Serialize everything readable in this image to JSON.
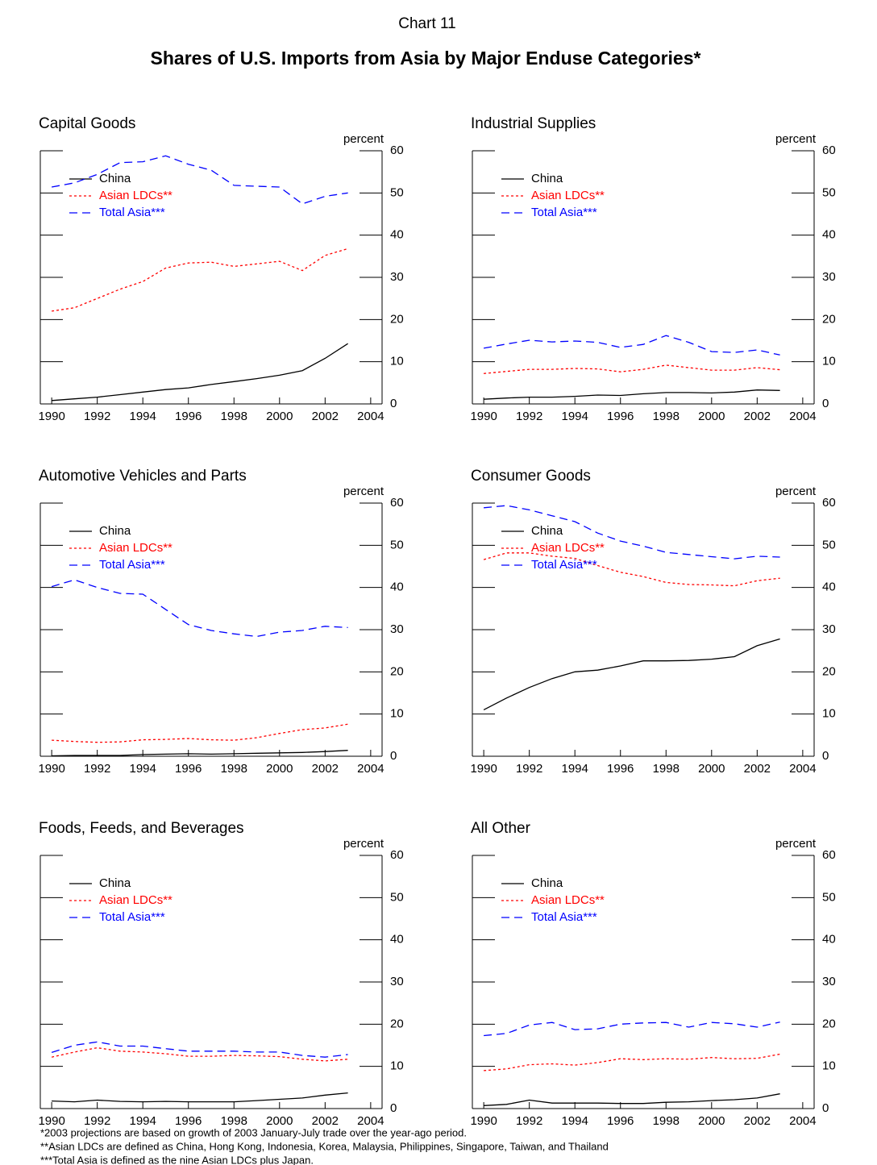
{
  "chart_number": "Chart 11",
  "title": "Shares of U.S. Imports from Asia by Major Enduse Categories*",
  "footnotes": [
    "*2003 projections are based on growth of 2003 January-July trade over the year-ago period.",
    "**Asian LDCs are defined as China, Hong Kong, Indonesia, Korea, Malaysia, Philippines, Singapore, Taiwan, and Thailand",
    "***Total Asia is defined as the nine Asian LDCs plus Japan."
  ],
  "chart_data": [
    {
      "type": "line",
      "title": "Capital Goods",
      "y_label": "percent",
      "legend": "upper left",
      "grid": false,
      "x": [
        1990,
        1991,
        1992,
        1993,
        1994,
        1995,
        1996,
        1997,
        1998,
        1999,
        2000,
        2001,
        2002,
        2003
      ],
      "xlim": [
        1989.5,
        2004.5
      ],
      "xticks": [
        1990,
        1992,
        1994,
        1996,
        1998,
        2000,
        2002,
        2004
      ],
      "ylim": [
        0,
        60
      ],
      "yticks": [
        0,
        10,
        20,
        30,
        40,
        50,
        60
      ],
      "series": [
        {
          "name": "China",
          "color": "#000000",
          "style": "solid",
          "values": [
            0.8,
            1.2,
            1.6,
            2.2,
            2.8,
            3.4,
            3.8,
            4.6,
            5.3,
            6.0,
            6.8,
            7.9,
            10.8,
            14.3
          ]
        },
        {
          "name": "Asian LDCs**",
          "color": "#ff0000",
          "style": "dotted",
          "values": [
            22,
            22.8,
            25,
            27.2,
            29,
            32.2,
            33.4,
            33.6,
            32.6,
            33.2,
            33.8,
            31.6,
            35.2,
            36.8
          ]
        },
        {
          "name": "Total Asia***",
          "color": "#0000ff",
          "style": "dashed",
          "values": [
            51.4,
            52.4,
            54.4,
            57.2,
            57.4,
            58.8,
            56.8,
            55.4,
            51.8,
            51.6,
            51.4,
            47.4,
            49.2,
            50.0
          ]
        }
      ]
    },
    {
      "type": "line",
      "title": "Industrial Supplies",
      "y_label": "percent",
      "legend": "upper left",
      "grid": false,
      "x": [
        1990,
        1991,
        1992,
        1993,
        1994,
        1995,
        1996,
        1997,
        1998,
        1999,
        2000,
        2001,
        2002,
        2003
      ],
      "xlim": [
        1989.5,
        2004.5
      ],
      "xticks": [
        1990,
        1992,
        1994,
        1996,
        1998,
        2000,
        2002,
        2004
      ],
      "ylim": [
        0,
        60
      ],
      "yticks": [
        0,
        10,
        20,
        30,
        40,
        50,
        60
      ],
      "series": [
        {
          "name": "China",
          "color": "#000000",
          "style": "solid",
          "values": [
            1.1,
            1.4,
            1.6,
            1.6,
            1.8,
            2.1,
            2.0,
            2.4,
            2.7,
            2.7,
            2.6,
            2.8,
            3.3,
            3.2
          ]
        },
        {
          "name": "Asian LDCs**",
          "color": "#ff0000",
          "style": "dotted",
          "values": [
            7.2,
            7.7,
            8.2,
            8.2,
            8.4,
            8.3,
            7.6,
            8.2,
            9.2,
            8.6,
            8.0,
            8.0,
            8.6,
            8.1
          ]
        },
        {
          "name": "Total Asia***",
          "color": "#0000ff",
          "style": "dashed",
          "values": [
            13.2,
            14.2,
            15.1,
            14.7,
            14.9,
            14.6,
            13.4,
            14.1,
            16.2,
            14.6,
            12.4,
            12.2,
            12.8,
            11.6
          ]
        }
      ]
    },
    {
      "type": "line",
      "title": "Automotive Vehicles and Parts",
      "y_label": "percent",
      "legend": "upper left",
      "grid": false,
      "x": [
        1990,
        1991,
        1992,
        1993,
        1994,
        1995,
        1996,
        1997,
        1998,
        1999,
        2000,
        2001,
        2002,
        2003
      ],
      "xlim": [
        1989.5,
        2004.5
      ],
      "xticks": [
        1990,
        1992,
        1994,
        1996,
        1998,
        2000,
        2002,
        2004
      ],
      "ylim": [
        0,
        60
      ],
      "yticks": [
        0,
        10,
        20,
        30,
        40,
        50,
        60
      ],
      "series": [
        {
          "name": "China",
          "color": "#000000",
          "style": "solid",
          "values": [
            0.1,
            0.2,
            0.2,
            0.2,
            0.4,
            0.5,
            0.6,
            0.5,
            0.6,
            0.7,
            0.8,
            0.9,
            1.1,
            1.4
          ]
        },
        {
          "name": "Asian LDCs**",
          "color": "#ff0000",
          "style": "dotted",
          "values": [
            3.8,
            3.5,
            3.3,
            3.4,
            3.9,
            4.0,
            4.2,
            3.9,
            3.8,
            4.4,
            5.4,
            6.3,
            6.7,
            7.6
          ]
        },
        {
          "name": "Total Asia***",
          "color": "#0000ff",
          "style": "dashed",
          "values": [
            40.2,
            41.8,
            40.0,
            38.6,
            38.4,
            34.8,
            31.2,
            29.8,
            29.0,
            28.4,
            29.4,
            29.8,
            30.8,
            30.5
          ]
        }
      ]
    },
    {
      "type": "line",
      "title": "Consumer Goods",
      "y_label": "percent",
      "legend": "upper left",
      "grid": false,
      "x": [
        1990,
        1991,
        1992,
        1993,
        1994,
        1995,
        1996,
        1997,
        1998,
        1999,
        2000,
        2001,
        2002,
        2003
      ],
      "xlim": [
        1989.5,
        2004.5
      ],
      "xticks": [
        1990,
        1992,
        1994,
        1996,
        1998,
        2000,
        2002,
        2004
      ],
      "ylim": [
        0,
        60
      ],
      "yticks": [
        0,
        10,
        20,
        30,
        40,
        50,
        60
      ],
      "series": [
        {
          "name": "China",
          "color": "#000000",
          "style": "solid",
          "values": [
            11.0,
            13.8,
            16.3,
            18.4,
            20.0,
            20.4,
            21.4,
            22.6,
            22.6,
            22.7,
            23.0,
            23.6,
            26.2,
            27.8
          ]
        },
        {
          "name": "Asian LDCs**",
          "color": "#ff0000",
          "style": "dotted",
          "values": [
            46.6,
            48.2,
            48.2,
            47.4,
            46.9,
            45.2,
            43.6,
            42.6,
            41.2,
            40.7,
            40.6,
            40.4,
            41.6,
            42.2
          ]
        },
        {
          "name": "Total Asia***",
          "color": "#0000ff",
          "style": "dashed",
          "values": [
            58.9,
            59.4,
            58.4,
            57.0,
            55.6,
            52.9,
            51.0,
            49.8,
            48.3,
            47.8,
            47.3,
            46.8,
            47.4,
            47.2
          ]
        }
      ]
    },
    {
      "type": "line",
      "title": "Foods, Feeds, and Beverages",
      "y_label": "percent",
      "legend": "upper left",
      "grid": false,
      "x": [
        1990,
        1991,
        1992,
        1993,
        1994,
        1995,
        1996,
        1997,
        1998,
        1999,
        2000,
        2001,
        2002,
        2003
      ],
      "xlim": [
        1989.5,
        2004.5
      ],
      "xticks": [
        1990,
        1992,
        1994,
        1996,
        1998,
        2000,
        2002,
        2004
      ],
      "ylim": [
        0,
        60
      ],
      "yticks": [
        0,
        10,
        20,
        30,
        40,
        50,
        60
      ],
      "series": [
        {
          "name": "China",
          "color": "#000000",
          "style": "solid",
          "values": [
            1.8,
            1.6,
            2.0,
            1.7,
            1.6,
            1.7,
            1.6,
            1.6,
            1.6,
            1.9,
            2.2,
            2.5,
            3.2,
            3.7
          ]
        },
        {
          "name": "Asian LDCs**",
          "color": "#ff0000",
          "style": "dotted",
          "values": [
            12.2,
            13.4,
            14.4,
            13.6,
            13.4,
            13.0,
            12.4,
            12.4,
            12.6,
            12.5,
            12.3,
            11.7,
            11.3,
            11.7
          ]
        },
        {
          "name": "Total Asia***",
          "color": "#0000ff",
          "style": "dashed",
          "values": [
            13.3,
            15.0,
            15.8,
            14.8,
            14.8,
            14.2,
            13.6,
            13.6,
            13.6,
            13.4,
            13.4,
            12.6,
            12.2,
            12.8
          ]
        }
      ]
    },
    {
      "type": "line",
      "title": "All Other",
      "y_label": "percent",
      "legend": "upper left",
      "grid": false,
      "x": [
        1990,
        1991,
        1992,
        1993,
        1994,
        1995,
        1996,
        1997,
        1998,
        1999,
        2000,
        2001,
        2002,
        2003
      ],
      "xlim": [
        1989.5,
        2004.5
      ],
      "xticks": [
        1990,
        1992,
        1994,
        1996,
        1998,
        2000,
        2002,
        2004
      ],
      "ylim": [
        0,
        60
      ],
      "yticks": [
        0,
        10,
        20,
        30,
        40,
        50,
        60
      ],
      "series": [
        {
          "name": "China",
          "color": "#000000",
          "style": "solid",
          "values": [
            0.7,
            1.0,
            2.0,
            1.3,
            1.3,
            1.3,
            1.2,
            1.2,
            1.5,
            1.6,
            1.9,
            2.1,
            2.5,
            3.5
          ]
        },
        {
          "name": "Asian LDCs**",
          "color": "#ff0000",
          "style": "dotted",
          "values": [
            9.0,
            9.4,
            10.4,
            10.6,
            10.3,
            10.9,
            11.8,
            11.6,
            11.8,
            11.7,
            12.1,
            11.8,
            11.9,
            12.9
          ]
        },
        {
          "name": "Total Asia***",
          "color": "#0000ff",
          "style": "dashed",
          "values": [
            17.3,
            17.8,
            19.8,
            20.4,
            18.7,
            18.9,
            20.0,
            20.3,
            20.4,
            19.3,
            20.4,
            20.1,
            19.3,
            20.5
          ]
        }
      ]
    }
  ]
}
